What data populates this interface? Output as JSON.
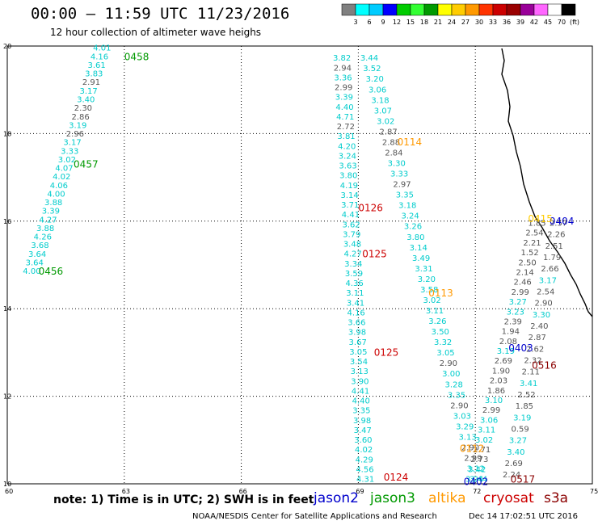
{
  "header": {
    "title": "00:00 – 11:59 UTC 11/23/2016",
    "subtitle": "12 hour collection of altimeter wave heighs"
  },
  "footer": {
    "note": "note: 1) Time is in UTC; 2) SWH is in feet",
    "credit": "NOAA/NESDIS Center for Satellite Applications and Research",
    "timestamp": "Dec 14 17:02:51 UTC 2016"
  },
  "missions": [
    {
      "name": "jason2",
      "color": "#0000cc"
    },
    {
      "name": "jason3",
      "color": "#009900"
    },
    {
      "name": "altika",
      "color": "#ff9900"
    },
    {
      "name": "cryosat",
      "color": "#cc0000"
    },
    {
      "name": "s3a",
      "color": "#8b0000"
    }
  ],
  "chart_data": {
    "type": "scatter",
    "xlim": [
      60,
      75
    ],
    "ylim": [
      10,
      20
    ],
    "x_ticks": [
      "60",
      "63",
      "66",
      "69",
      "72",
      "75"
    ],
    "y_ticks": [
      "10",
      "12",
      "14",
      "16",
      "18",
      "20"
    ],
    "grid": true,
    "colorscale": {
      "unit": "(ft)",
      "labels": [
        "3",
        "6",
        "9",
        "12",
        "15",
        "18",
        "21",
        "24",
        "27",
        "30",
        "33",
        "36",
        "39",
        "42",
        "45",
        "70"
      ],
      "colors": [
        "#808080",
        "#00ffff",
        "#00ccff",
        "#0000ff",
        "#00cc00",
        "#33ff33",
        "#009900",
        "#ffff00",
        "#ffcc00",
        "#ff9900",
        "#ff3300",
        "#cc0000",
        "#990000",
        "#990099",
        "#ff66ff",
        "#ffffff",
        "#000000"
      ]
    },
    "time_labels": [
      {
        "text": "0458",
        "x": 63.0,
        "y": 19.75,
        "color": "#009900"
      },
      {
        "text": "0457",
        "x": 61.7,
        "y": 17.3,
        "color": "#009900"
      },
      {
        "text": "0456",
        "x": 60.8,
        "y": 14.85,
        "color": "#009900"
      },
      {
        "text": "0114",
        "x": 70.0,
        "y": 17.8,
        "color": "#ff9900"
      },
      {
        "text": "0113",
        "x": 70.8,
        "y": 14.35,
        "color": "#ff9900"
      },
      {
        "text": "0112",
        "x": 71.6,
        "y": 10.8,
        "color": "#ff9900"
      },
      {
        "text": "0126",
        "x": 69.0,
        "y": 16.3,
        "color": "#cc0000"
      },
      {
        "text": "0125",
        "x": 69.1,
        "y": 15.25,
        "color": "#cc0000"
      },
      {
        "text": "0125",
        "x": 69.4,
        "y": 13.0,
        "color": "#cc0000"
      },
      {
        "text": "0124",
        "x": 69.65,
        "y": 10.15,
        "color": "#cc0000"
      },
      {
        "text": "0404",
        "x": 73.9,
        "y": 16.0,
        "color": "#0000cc"
      },
      {
        "text": "0403",
        "x": 72.85,
        "y": 13.1,
        "color": "#0000cc"
      },
      {
        "text": "0402",
        "x": 71.7,
        "y": 10.05,
        "color": "#0000cc"
      },
      {
        "text": "0516",
        "x": 73.45,
        "y": 12.7,
        "color": "#8b0000"
      },
      {
        "text": "0517",
        "x": 72.9,
        "y": 10.1,
        "color": "#8b0000"
      },
      {
        "text": "0415",
        "x": 73.35,
        "y": 16.05,
        "color": "#ffcc00"
      }
    ],
    "tracks": [
      {
        "name": "jason3 0456-0458",
        "start": [
          60.4,
          14.85
        ],
        "end": [
          62.2,
          19.95
        ],
        "values": [
          "4.00",
          "3.64",
          "3.64",
          "3.68",
          "4.26",
          "3.88",
          "4.27",
          "3.39",
          "3.88",
          "4.00",
          "4.06",
          "4.02",
          "4.07",
          "3.02",
          "3.33",
          "3.17",
          "2.96",
          "3.19",
          "2.86",
          "2.30",
          "3.40",
          "3.17",
          "2.91",
          "3.83",
          "3.61",
          "4.16",
          "4.01"
        ]
      },
      {
        "name": "altika 0113-0114",
        "start": [
          68.35,
          19.72
        ],
        "end": [
          68.95,
          10.1
        ],
        "values": [
          "3.82",
          "2.94",
          "3.36",
          "2.99",
          "3.39",
          "4.40",
          "4.71",
          "2.72",
          "3.81",
          "4.20",
          "3.24",
          "3.63",
          "3.80",
          "4.19",
          "3.14",
          "3.71",
          "4.41",
          "3.62",
          "3.79",
          "3.48",
          "4.27",
          "3.34",
          "3.59",
          "4.36",
          "3.11",
          "3.41",
          "4.16",
          "3.66",
          "3.98",
          "3.67",
          "3.05",
          "3.54",
          "3.13",
          "3.90",
          "4.41",
          "4.40",
          "3.35",
          "3.98",
          "3.47",
          "3.60",
          "4.02",
          "4.29",
          "4.56",
          "4.31"
        ]
      },
      {
        "name": "cryosat 0124-0126",
        "start": [
          69.05,
          19.72
        ],
        "end": [
          71.85,
          10.1
        ],
        "values": [
          "3.44",
          "3.52",
          "3.20",
          "3.06",
          "3.18",
          "3.07",
          "3.02",
          "2.87",
          "2.88",
          "2.84",
          "3.30",
          "3.33",
          "2.97",
          "3.35",
          "3.18",
          "3.24",
          "3.26",
          "3.80",
          "3.14",
          "3.49",
          "3.31",
          "3.20",
          "3.58",
          "3.02",
          "3.11",
          "3.26",
          "3.50",
          "3.32",
          "3.05",
          "2.90",
          "3.00",
          "3.28",
          "3.35",
          "2.90",
          "3.03",
          "3.29",
          "3.13",
          "2.90",
          "2.99",
          "3.12",
          "3.44"
        ]
      },
      {
        "name": "jason2 0402-0404",
        "start": [
          73.35,
          15.95
        ],
        "end": [
          71.75,
          10.1
        ],
        "values": [
          "1.85",
          "2.54",
          "2.21",
          "1.52",
          "2.50",
          "2.14",
          "2.46",
          "2.99",
          "3.27",
          "3.23",
          "2.39",
          "1.94",
          "2.08",
          "3.19",
          "2.69",
          "1.90",
          "2.03",
          "1.86",
          "3.10",
          "2.99",
          "3.06",
          "3.11",
          "3.02",
          "2.71",
          "2.73",
          "3.42",
          "3.24"
        ]
      },
      {
        "name": "s3a 0516-0517",
        "start": [
          73.9,
          15.95
        ],
        "end": [
          72.7,
          10.2
        ],
        "values": [
          "2.57",
          "2.26",
          "2.51",
          "1.79",
          "2.66",
          "3.17",
          "2.54",
          "2.90",
          "3.30",
          "2.40",
          "2.87",
          "2.62",
          "2.32",
          "2.11",
          "3.41",
          "2.52",
          "1.85",
          "3.19",
          "0.59",
          "3.27",
          "3.40",
          "2.69",
          "2.24"
        ]
      }
    ]
  }
}
